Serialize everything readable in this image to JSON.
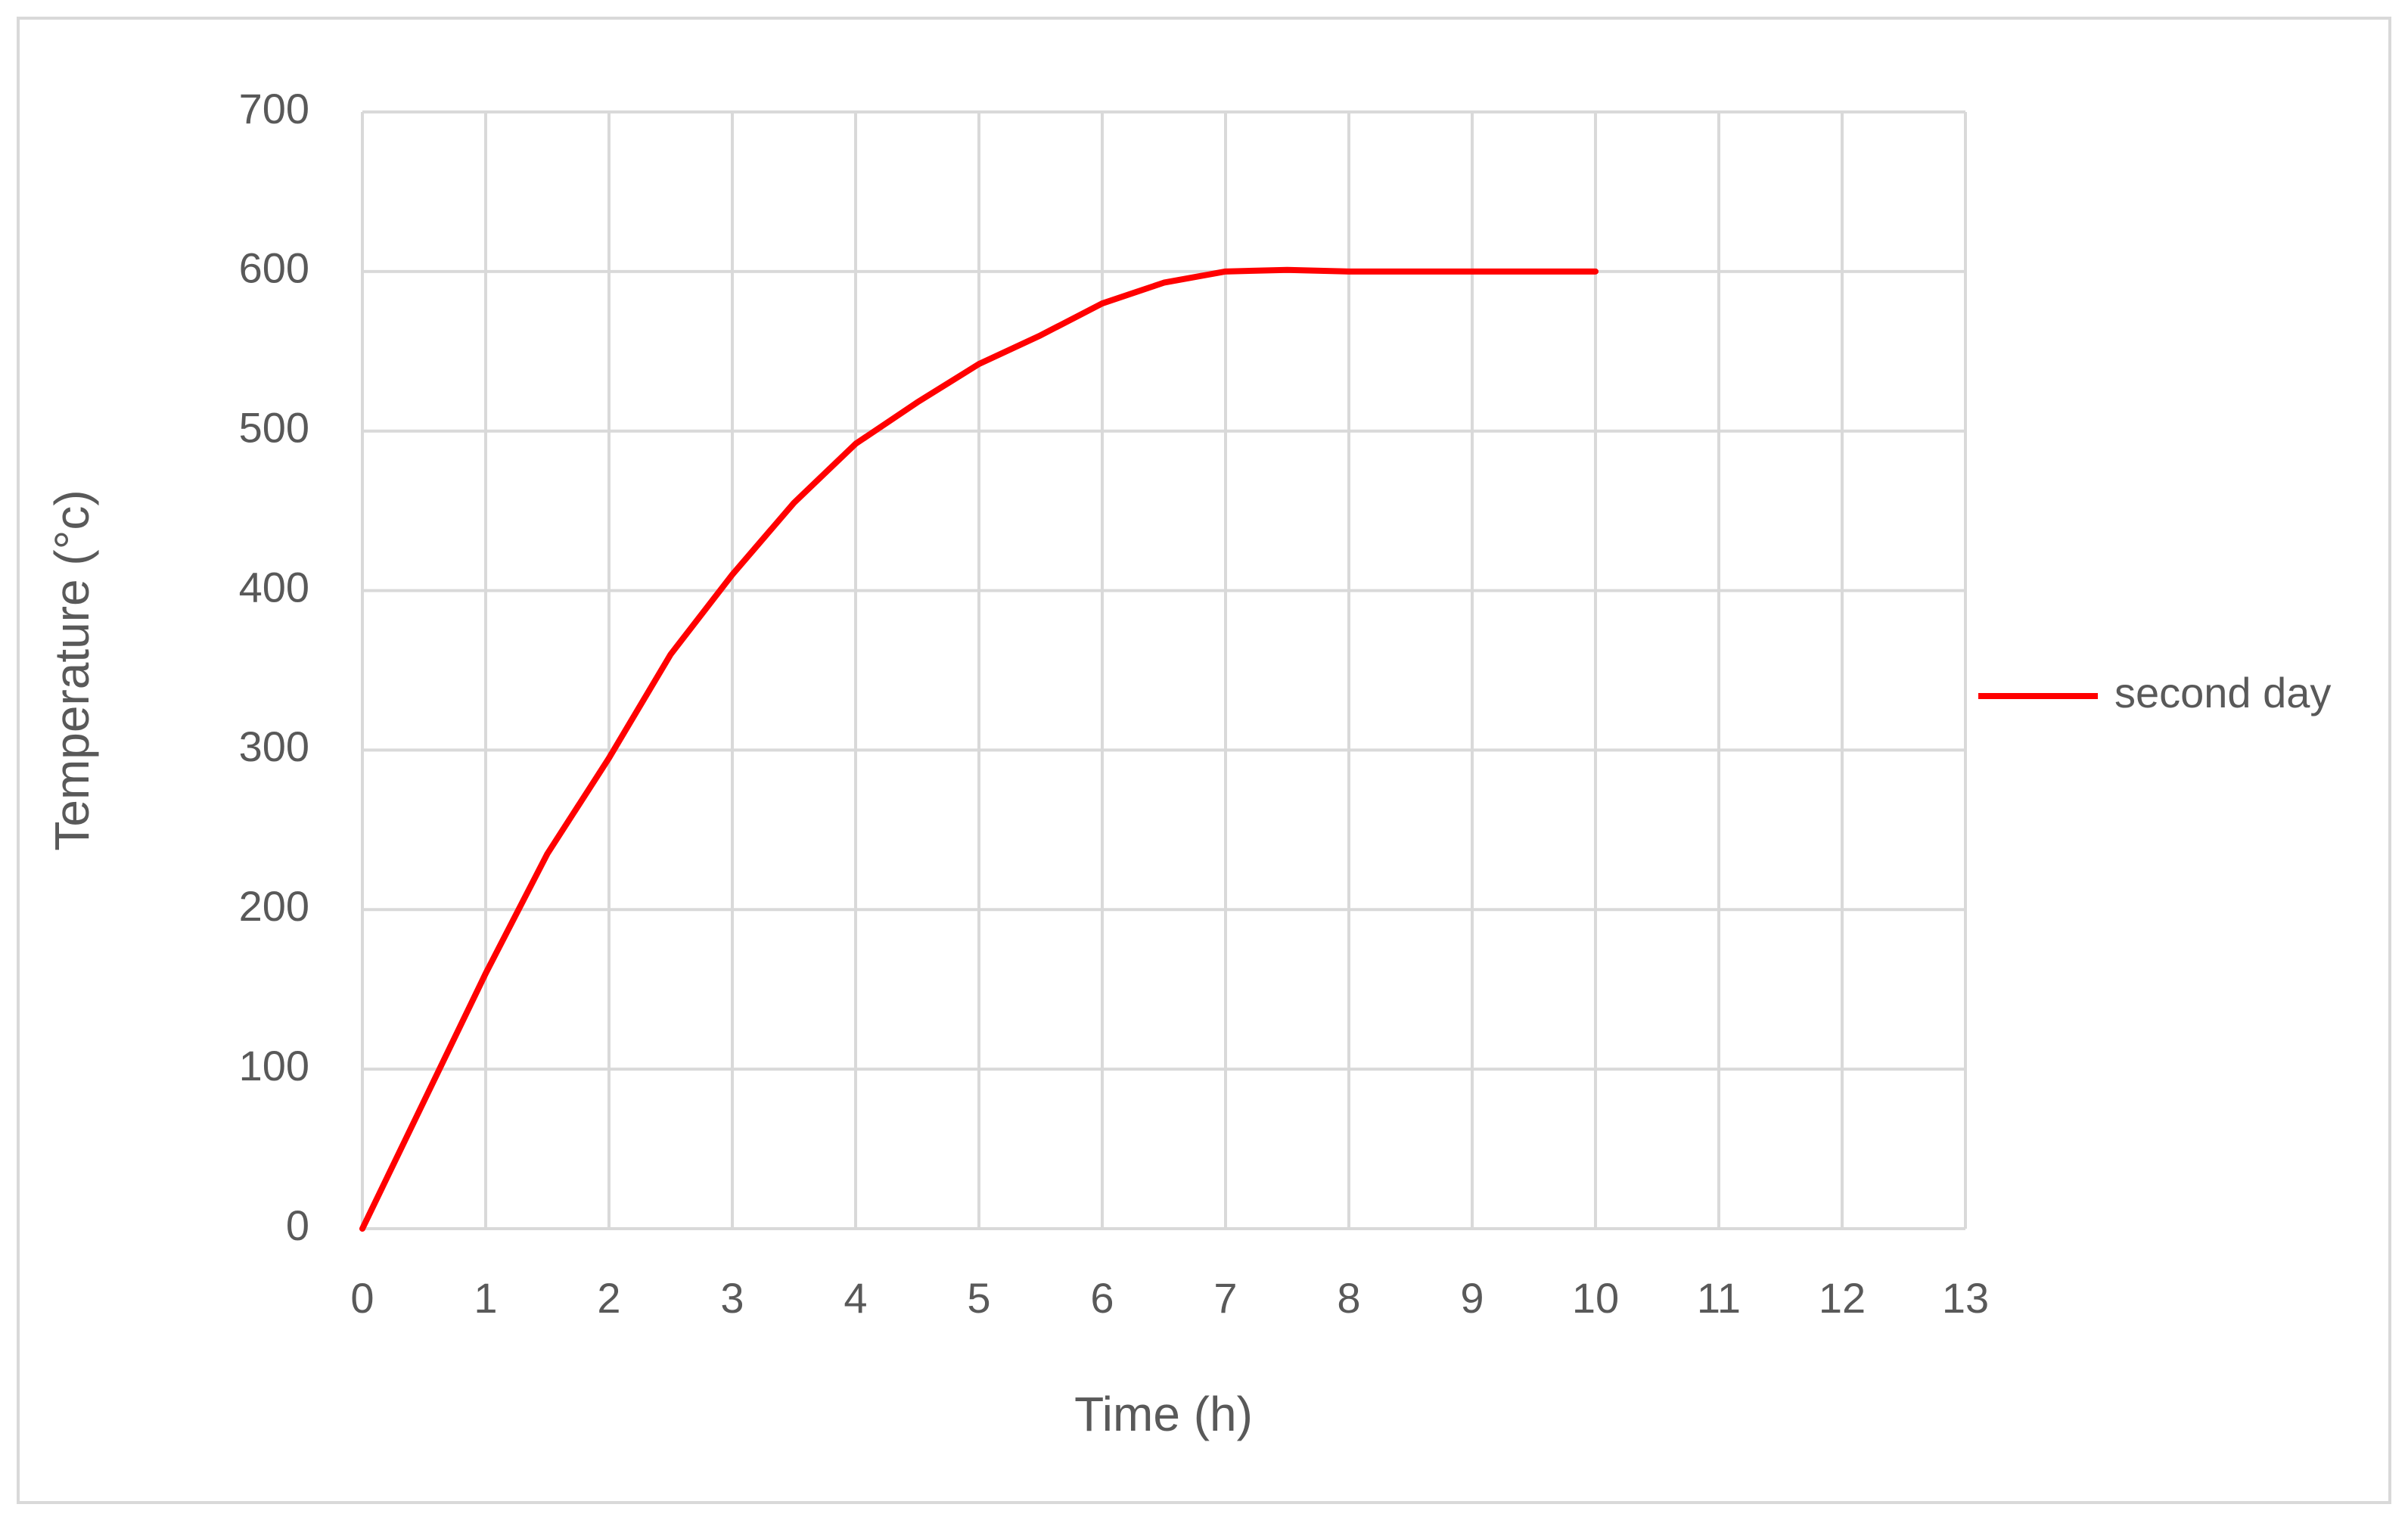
{
  "chart_data": {
    "type": "line",
    "x_label": "Time (h)",
    "y_label": "Temperature (°c)",
    "series": [
      {
        "name": "second day",
        "color": "#ff0000",
        "x": [
          0,
          0.5,
          1,
          1.5,
          2,
          2.5,
          3,
          3.5,
          4,
          4.5,
          5,
          5.5,
          6,
          6.5,
          7,
          7.5,
          8,
          9,
          10
        ],
        "values": [
          0,
          80,
          160,
          235,
          295,
          360,
          410,
          455,
          492,
          518,
          542,
          560,
          580,
          593,
          600,
          601,
          600,
          600,
          600
        ]
      }
    ],
    "xlim": [
      0,
      13
    ],
    "xticks": [
      0,
      1,
      2,
      3,
      4,
      5,
      6,
      7,
      8,
      9,
      10,
      11,
      12,
      13
    ],
    "ylim": [
      0,
      700
    ],
    "yticks": [
      0,
      100,
      200,
      300,
      400,
      500,
      600,
      700
    ],
    "grid": true,
    "legend": "right"
  }
}
